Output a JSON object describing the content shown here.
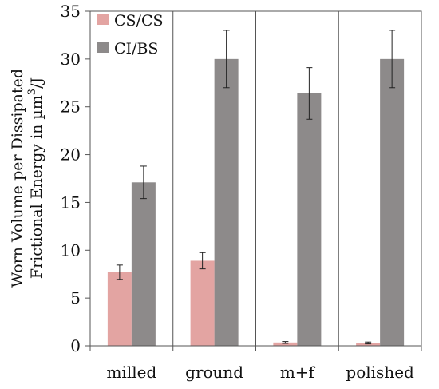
{
  "chart_data": {
    "type": "bar",
    "categories": [
      "milled",
      "ground",
      "m+f",
      "polished"
    ],
    "series": [
      {
        "name": "CS/CS",
        "color": "#e3a4a2",
        "values": [
          7.7,
          8.9,
          0.35,
          0.3
        ],
        "errors": [
          0.75,
          0.85,
          0.1,
          0.1
        ]
      },
      {
        "name": "CI/BS",
        "color": "#8d8a8a",
        "values": [
          17.1,
          30.0,
          26.4,
          30.0
        ],
        "errors": [
          1.7,
          3.0,
          2.7,
          3.0
        ]
      }
    ],
    "ylim": [
      0,
      35
    ],
    "yticks": [
      "0",
      "5",
      "10",
      "15",
      "20",
      "25",
      "30",
      "35"
    ],
    "ylabel_line1": "Worn Volume per Dissipated",
    "ylabel_line2_pre": "Frictional Energy in µm",
    "ylabel_sup": "3",
    "ylabel_line2_post": "/J",
    "grid": "vertical category separators",
    "legend_position": "top-left"
  }
}
